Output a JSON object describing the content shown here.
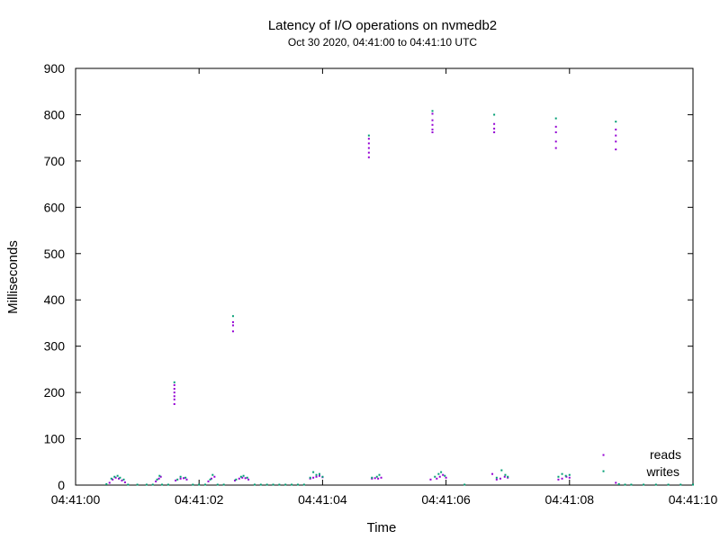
{
  "chart_data": {
    "type": "scatter",
    "title": "Latency of I/O operations on nvmedb2",
    "subtitle": "Oct 30 2020, 04:41:00 to 04:41:10 UTC",
    "xlabel": "Time",
    "ylabel": "Milliseconds",
    "xlim": [
      0,
      10
    ],
    "ylim": [
      0,
      900
    ],
    "x_ticks": [
      0,
      2,
      4,
      6,
      8,
      10
    ],
    "x_tick_labels": [
      "04:41:00",
      "04:41:02",
      "04:41:04",
      "04:41:06",
      "04:41:08",
      "04:41:10"
    ],
    "y_ticks": [
      0,
      100,
      200,
      300,
      400,
      500,
      600,
      700,
      800,
      900
    ],
    "y_tick_labels": [
      "0",
      "100",
      "200",
      "300",
      "400",
      "500",
      "600",
      "700",
      "800",
      "900"
    ],
    "grid": false,
    "legend_position": "bottom-right",
    "series": [
      {
        "name": "reads",
        "color": "#9400d3",
        "points": [
          [
            0.55,
            5
          ],
          [
            0.6,
            12
          ],
          [
            0.65,
            16
          ],
          [
            0.7,
            14
          ],
          [
            0.75,
            10
          ],
          [
            0.8,
            6
          ],
          [
            1.3,
            8
          ],
          [
            1.35,
            14
          ],
          [
            1.38,
            18
          ],
          [
            1.6,
            175
          ],
          [
            1.6,
            185
          ],
          [
            1.6,
            192
          ],
          [
            1.6,
            200
          ],
          [
            1.6,
            208
          ],
          [
            1.6,
            216
          ],
          [
            1.62,
            10
          ],
          [
            1.7,
            14
          ],
          [
            1.75,
            15
          ],
          [
            1.8,
            12
          ],
          [
            2.15,
            8
          ],
          [
            2.2,
            14
          ],
          [
            2.25,
            18
          ],
          [
            2.55,
            332
          ],
          [
            2.55,
            345
          ],
          [
            2.55,
            352
          ],
          [
            2.58,
            10
          ],
          [
            2.65,
            14
          ],
          [
            2.7,
            16
          ],
          [
            2.75,
            15
          ],
          [
            2.8,
            12
          ],
          [
            3.8,
            14
          ],
          [
            3.85,
            16
          ],
          [
            3.9,
            18
          ],
          [
            3.95,
            20
          ],
          [
            4.0,
            17
          ],
          [
            4.75,
            708
          ],
          [
            4.75,
            718
          ],
          [
            4.75,
            728
          ],
          [
            4.75,
            738
          ],
          [
            4.75,
            748
          ],
          [
            4.8,
            14
          ],
          [
            4.85,
            15
          ],
          [
            4.9,
            14
          ],
          [
            4.95,
            16
          ],
          [
            5.75,
            12
          ],
          [
            5.78,
            762
          ],
          [
            5.78,
            768
          ],
          [
            5.78,
            778
          ],
          [
            5.78,
            788
          ],
          [
            5.78,
            802
          ],
          [
            5.85,
            14
          ],
          [
            5.9,
            18
          ],
          [
            5.95,
            22
          ],
          [
            6.0,
            16
          ],
          [
            6.75,
            24
          ],
          [
            6.78,
            762
          ],
          [
            6.78,
            770
          ],
          [
            6.78,
            780
          ],
          [
            6.82,
            12
          ],
          [
            6.88,
            14
          ],
          [
            6.95,
            18
          ],
          [
            7.0,
            16
          ],
          [
            7.78,
            728
          ],
          [
            7.78,
            742
          ],
          [
            7.78,
            762
          ],
          [
            7.78,
            774
          ],
          [
            7.82,
            12
          ],
          [
            7.88,
            14
          ],
          [
            7.95,
            18
          ],
          [
            8.0,
            16
          ],
          [
            8.55,
            65
          ],
          [
            8.75,
            725
          ],
          [
            8.75,
            742
          ],
          [
            8.75,
            755
          ],
          [
            8.75,
            768
          ],
          [
            8.75,
            5
          ]
        ]
      },
      {
        "name": "writes",
        "color": "#009e73",
        "points": [
          [
            0.5,
            2
          ],
          [
            0.58,
            14
          ],
          [
            0.63,
            18
          ],
          [
            0.68,
            20
          ],
          [
            0.72,
            16
          ],
          [
            0.78,
            12
          ],
          [
            0.85,
            1
          ],
          [
            1.0,
            1
          ],
          [
            1.15,
            1
          ],
          [
            1.25,
            1
          ],
          [
            1.32,
            12
          ],
          [
            1.36,
            20
          ],
          [
            1.4,
            1
          ],
          [
            1.5,
            1
          ],
          [
            1.6,
            222
          ],
          [
            1.65,
            12
          ],
          [
            1.7,
            18
          ],
          [
            1.78,
            16
          ],
          [
            1.9,
            1
          ],
          [
            2.0,
            1
          ],
          [
            2.1,
            1
          ],
          [
            2.18,
            12
          ],
          [
            2.22,
            22
          ],
          [
            2.3,
            1
          ],
          [
            2.4,
            1
          ],
          [
            2.55,
            365
          ],
          [
            2.6,
            12
          ],
          [
            2.68,
            18
          ],
          [
            2.72,
            20
          ],
          [
            2.78,
            16
          ],
          [
            2.9,
            1
          ],
          [
            3.0,
            1
          ],
          [
            3.1,
            1
          ],
          [
            3.2,
            1
          ],
          [
            3.3,
            1
          ],
          [
            3.4,
            1
          ],
          [
            3.5,
            1
          ],
          [
            3.6,
            1
          ],
          [
            3.7,
            1
          ],
          [
            3.8,
            16
          ],
          [
            3.85,
            28
          ],
          [
            3.9,
            22
          ],
          [
            3.95,
            24
          ],
          [
            4.0,
            18
          ],
          [
            4.75,
            755
          ],
          [
            4.8,
            16
          ],
          [
            4.88,
            18
          ],
          [
            4.92,
            22
          ],
          [
            5.78,
            808
          ],
          [
            5.82,
            18
          ],
          [
            5.88,
            24
          ],
          [
            5.92,
            28
          ],
          [
            5.98,
            20
          ],
          [
            6.3,
            1
          ],
          [
            6.78,
            800
          ],
          [
            6.82,
            16
          ],
          [
            6.9,
            32
          ],
          [
            6.96,
            22
          ],
          [
            7.0,
            18
          ],
          [
            7.78,
            792
          ],
          [
            7.82,
            18
          ],
          [
            7.88,
            24
          ],
          [
            7.94,
            20
          ],
          [
            8.0,
            22
          ],
          [
            8.55,
            30
          ],
          [
            8.75,
            785
          ],
          [
            8.8,
            2
          ],
          [
            8.9,
            1
          ],
          [
            9.0,
            1
          ],
          [
            9.2,
            1
          ],
          [
            9.4,
            1
          ],
          [
            9.6,
            1
          ],
          [
            9.8,
            1
          ],
          [
            10.0,
            1
          ]
        ]
      }
    ]
  }
}
